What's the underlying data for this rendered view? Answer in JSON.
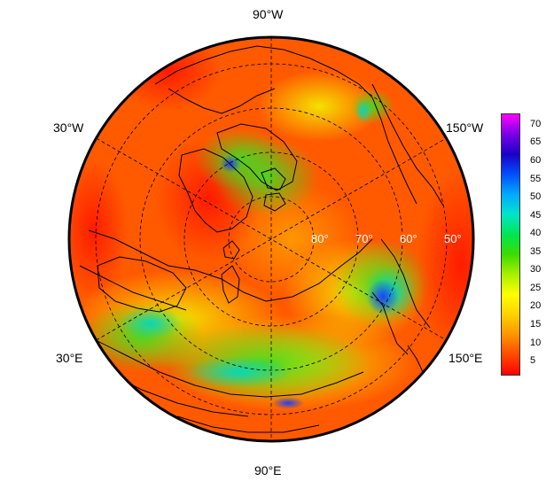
{
  "map": {
    "longitude_labels": {
      "top": "90°W",
      "upper_left": "30°W",
      "upper_right": "150°W",
      "lower_left": "30°E",
      "lower_right": "150°E",
      "bottom": "90°E"
    },
    "latitude_labels": [
      "80°",
      "70°",
      "60°",
      "50°"
    ],
    "projection": "north-polar-stereographic",
    "graticule": "dashed"
  },
  "colorbar": {
    "ticks": [
      "70",
      "65",
      "60",
      "55",
      "50",
      "45",
      "40",
      "35",
      "30",
      "25",
      "20",
      "15",
      "10",
      "5"
    ],
    "min": 1,
    "max": 73,
    "colors": [
      "#ff0000",
      "#ff4a00",
      "#ff9400",
      "#ffd200",
      "#ffff00",
      "#a8f000",
      "#3cdc00",
      "#00e650",
      "#00e6c8",
      "#00aaff",
      "#0050ff",
      "#1a00c8",
      "#7800e6",
      "#ff00ff"
    ]
  }
}
